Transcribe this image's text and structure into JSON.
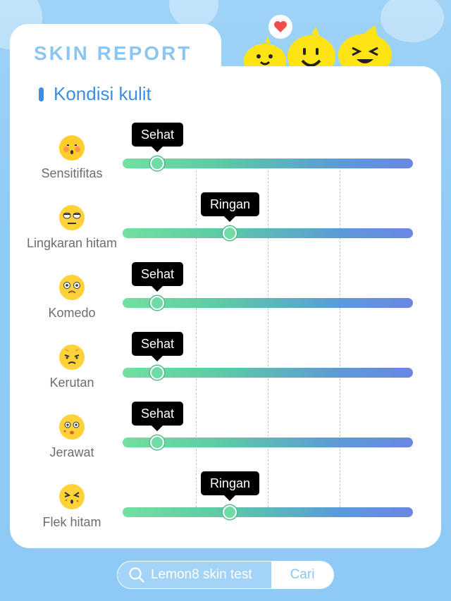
{
  "header": {
    "title": "SKIN REPORT"
  },
  "section": {
    "title": "Kondisi kulit"
  },
  "metrics": [
    {
      "label": "Sensitifitas",
      "status": "Sehat",
      "level": 0.12,
      "emoji": "sensitive-face-icon"
    },
    {
      "label": "Lingkaran hitam",
      "status": "Ringan",
      "level": 0.37,
      "emoji": "tired-eyes-face-icon"
    },
    {
      "label": "Komedo",
      "status": "Sehat",
      "level": 0.12,
      "emoji": "blackhead-face-icon"
    },
    {
      "label": "Kerutan",
      "status": "Sehat",
      "level": 0.12,
      "emoji": "wrinkle-face-icon"
    },
    {
      "label": "Jerawat",
      "status": "Sehat",
      "level": 0.12,
      "emoji": "acne-face-icon"
    },
    {
      "label": "Flek hitam",
      "status": "Ringan",
      "level": 0.37,
      "emoji": "spot-face-icon"
    }
  ],
  "search": {
    "placeholder": "Lemon8 skin test",
    "button": "Cari"
  },
  "colors": {
    "accent": "#3a8fe0",
    "track_start": "#72e0a0",
    "track_end": "#6a87e3",
    "tooltip": "#000000"
  }
}
